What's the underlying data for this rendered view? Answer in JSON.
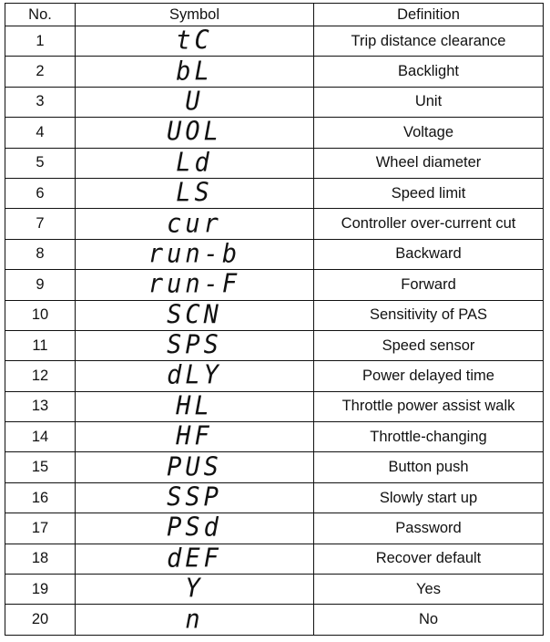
{
  "headers": {
    "no": "No.",
    "symbol": "Symbol",
    "definition": "Definition"
  },
  "rows": [
    {
      "no": "1",
      "symbol": "tC",
      "definition": "Trip distance clearance"
    },
    {
      "no": "2",
      "symbol": "bL",
      "definition": "Backlight"
    },
    {
      "no": "3",
      "symbol": "U",
      "definition": "Unit"
    },
    {
      "no": "4",
      "symbol": "UOL",
      "definition": "Voltage"
    },
    {
      "no": "5",
      "symbol": "Ld",
      "definition": "Wheel diameter"
    },
    {
      "no": "6",
      "symbol": "LS",
      "definition": "Speed limit"
    },
    {
      "no": "7",
      "symbol": "cur",
      "definition": "Controller over-current cut"
    },
    {
      "no": "8",
      "symbol": "run-b",
      "definition": "Backward"
    },
    {
      "no": "9",
      "symbol": "run-F",
      "definition": "Forward"
    },
    {
      "no": "10",
      "symbol": "SCN",
      "definition": "Sensitivity of PAS"
    },
    {
      "no": "11",
      "symbol": "SPS",
      "definition": "Speed sensor"
    },
    {
      "no": "12",
      "symbol": "dLY",
      "definition": "Power delayed time"
    },
    {
      "no": "13",
      "symbol": "HL",
      "definition": "Throttle power assist walk"
    },
    {
      "no": "14",
      "symbol": "HF",
      "definition": "Throttle-changing"
    },
    {
      "no": "15",
      "symbol": "PUS",
      "definition": "Button push"
    },
    {
      "no": "16",
      "symbol": "SSP",
      "definition": "Slowly start up"
    },
    {
      "no": "17",
      "symbol": "PSd",
      "definition": "Password"
    },
    {
      "no": "18",
      "symbol": "dEF",
      "definition": "Recover default"
    },
    {
      "no": "19",
      "symbol": "Y",
      "definition": "Yes"
    },
    {
      "no": "20",
      "symbol": "n",
      "definition": "No"
    }
  ]
}
